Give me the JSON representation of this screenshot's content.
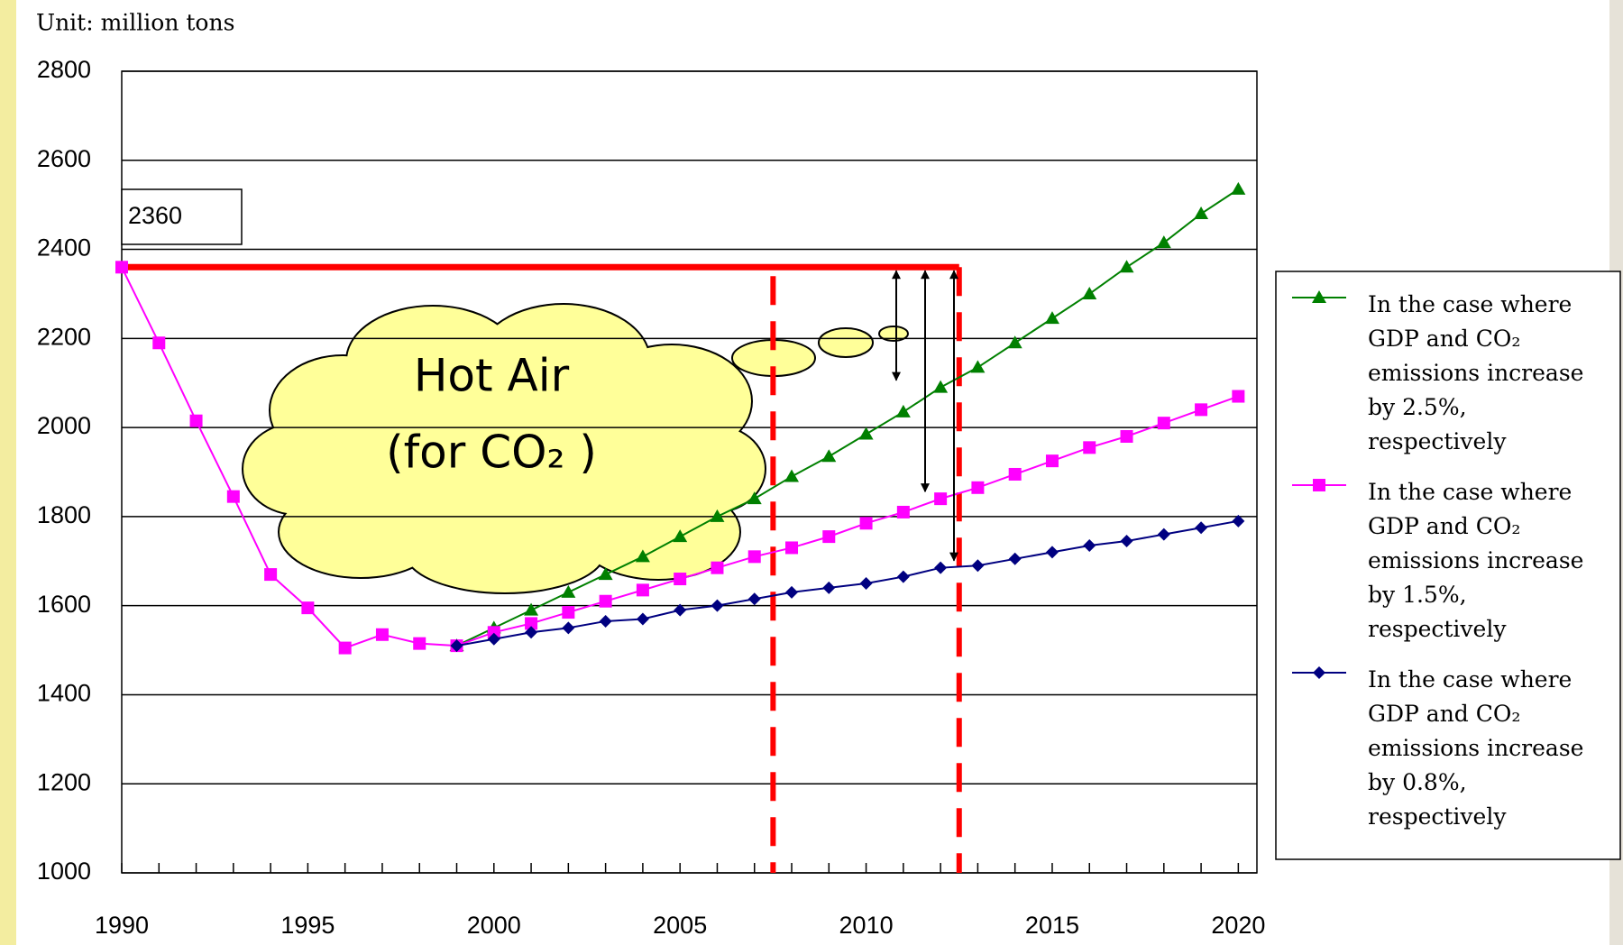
{
  "chart_data": {
    "type": "line",
    "unit_label": "Unit: million tons",
    "x": [
      1990,
      1991,
      1992,
      1993,
      1994,
      1995,
      1996,
      1997,
      1998,
      1999,
      2000,
      2001,
      2002,
      2003,
      2004,
      2005,
      2006,
      2007,
      2008,
      2009,
      2010,
      2011,
      2012,
      2013,
      2014,
      2015,
      2016,
      2017,
      2018,
      2019,
      2020
    ],
    "series": [
      {
        "name": "In the case where GDP and CO₂ emissions increase by 2.5%, respectively",
        "color": "#008000",
        "marker": "triangle",
        "values": [
          null,
          null,
          null,
          null,
          null,
          null,
          null,
          null,
          null,
          1510,
          1550,
          1590,
          1630,
          1670,
          1710,
          1755,
          1800,
          1840,
          1890,
          1935,
          1985,
          2035,
          2090,
          2135,
          2190,
          2245,
          2300,
          2360,
          2415,
          2480,
          2535
        ]
      },
      {
        "name": "In the case where GDP and CO₂ emissions increase by 1.5%, respectively",
        "color": "#ff00ff",
        "marker": "square",
        "values": [
          2360,
          2190,
          2015,
          1845,
          1670,
          1595,
          1505,
          1535,
          1515,
          1510,
          1540,
          1560,
          1585,
          1610,
          1635,
          1660,
          1685,
          1710,
          1730,
          1755,
          1785,
          1810,
          1840,
          1865,
          1895,
          1925,
          1955,
          1980,
          2010,
          2040,
          2070
        ]
      },
      {
        "name": "In the case where GDP and CO₂ emissions increase by 0.8%, respectively",
        "color": "#000080",
        "marker": "diamond",
        "values": [
          null,
          null,
          null,
          null,
          null,
          null,
          null,
          null,
          null,
          1510,
          1525,
          1540,
          1550,
          1565,
          1570,
          1590,
          1600,
          1615,
          1630,
          1640,
          1650,
          1665,
          1685,
          1690,
          1705,
          1720,
          1735,
          1745,
          1760,
          1775,
          1790
        ]
      }
    ],
    "xlim": [
      1990,
      2020.5
    ],
    "xticks": [
      1990,
      1995,
      2000,
      2005,
      2010,
      2015,
      2020
    ],
    "ylim": [
      1000,
      2800
    ],
    "yticks": [
      1000,
      1200,
      1400,
      1600,
      1800,
      2000,
      2200,
      2400,
      2600,
      2800
    ],
    "grid": true,
    "reference_line": {
      "value": 2360,
      "label": "2,360",
      "color": "#ff0000",
      "until": 2012.5
    },
    "period_lines": [
      2007.5,
      2012.5
    ],
    "annotation": {
      "line1": "Hot Air",
      "line2": "(for CO₂ )"
    },
    "legend": "right"
  }
}
